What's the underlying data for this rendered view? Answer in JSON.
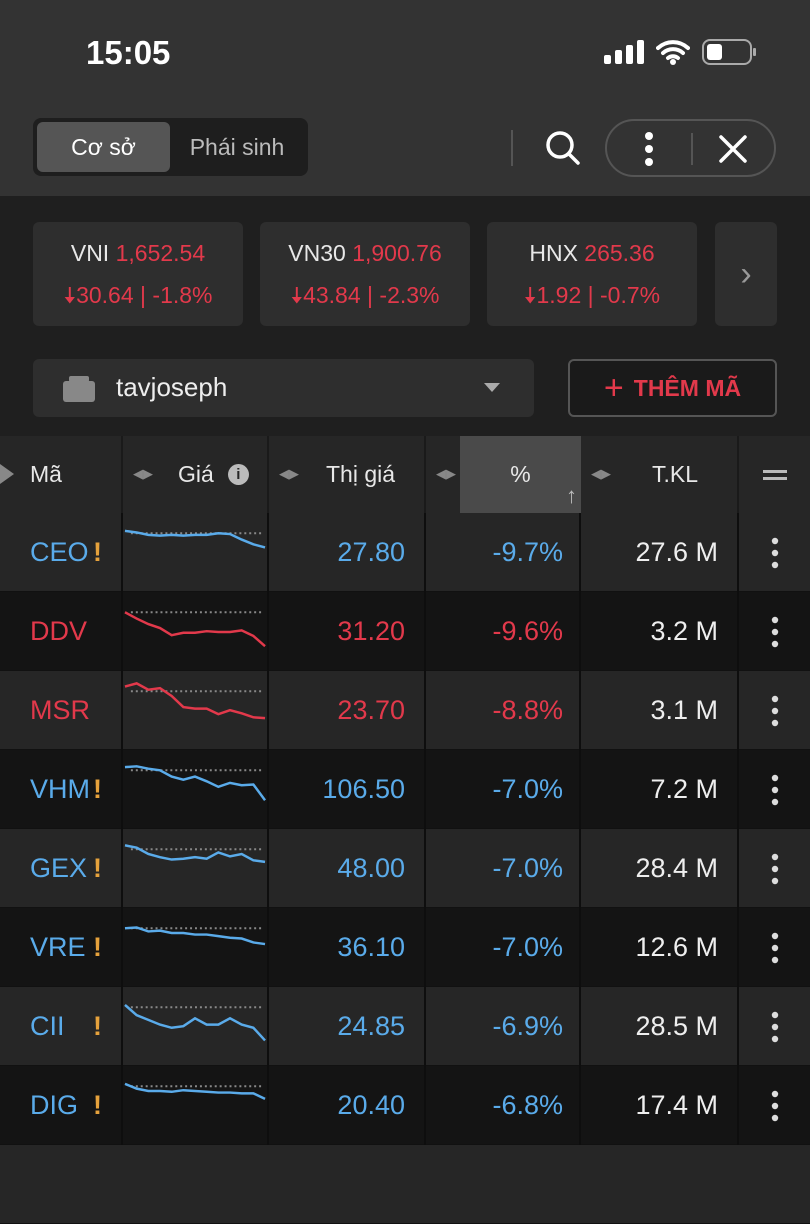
{
  "status_bar": {
    "time": "15:05"
  },
  "toolbar": {
    "tabs": [
      {
        "label": "Cơ sở",
        "active": true
      },
      {
        "label": "Phái sinh",
        "active": false
      }
    ]
  },
  "indices": [
    {
      "name": "VNI",
      "value": "1,652.54",
      "change": "30.64",
      "pct": "-1.8%",
      "direction": "down"
    },
    {
      "name": "VN30",
      "value": "1,900.76",
      "change": "43.84",
      "pct": "-2.3%",
      "direction": "down"
    },
    {
      "name": "HNX",
      "value": "265.36",
      "change": "1.92",
      "pct": "-0.7%",
      "direction": "down"
    }
  ],
  "watchlist": {
    "name": "tavjoseph",
    "add_label": "THÊM MÃ"
  },
  "table": {
    "columns": [
      "Mã",
      "Giá",
      "Thị giá",
      "%",
      "T.KL"
    ],
    "sort": {
      "column": "%",
      "direction": "ascending"
    },
    "rows": [
      {
        "symbol": "CEO",
        "warning": true,
        "color": "blue",
        "price": "27.80",
        "pct": "-9.7%",
        "volume": "27.6 M",
        "spark": [
          0.3,
          0.1,
          -0.2,
          -0.3,
          -0.2,
          -0.3,
          -0.2,
          -0.2,
          0,
          -0.1,
          -0.8,
          -1.4,
          -1.8
        ]
      },
      {
        "symbol": "DDV",
        "warning": false,
        "color": "red",
        "price": "31.20",
        "pct": "-9.6%",
        "volume": "3.2 M",
        "spark": [
          0,
          -0.8,
          -1.5,
          -2,
          -2.9,
          -2.6,
          -2.6,
          -2.4,
          -2.5,
          -2.5,
          -2.3,
          -3,
          -4.3
        ]
      },
      {
        "symbol": "MSR",
        "warning": false,
        "color": "red",
        "price": "23.70",
        "pct": "-8.8%",
        "volume": "3.1 M",
        "spark": [
          0.6,
          1,
          0.2,
          0.4,
          -0.6,
          -2,
          -2.2,
          -2.2,
          -2.9,
          -2.4,
          -2.8,
          -3.3,
          -3.4
        ]
      },
      {
        "symbol": "VHM",
        "warning": true,
        "color": "blue",
        "price": "106.50",
        "pct": "-7.0%",
        "volume": "7.2 M",
        "spark": [
          0.4,
          0.5,
          0.2,
          0,
          -0.8,
          -1.2,
          -0.8,
          -1.4,
          -2.1,
          -1.6,
          -1.9,
          -1.8,
          -3.8
        ]
      },
      {
        "symbol": "GEX",
        "warning": true,
        "color": "blue",
        "price": "48.00",
        "pct": "-7.0%",
        "volume": "28.4 M",
        "spark": [
          0.5,
          0.2,
          -0.6,
          -1,
          -1.3,
          -1.2,
          -1,
          -1.2,
          -0.4,
          -0.9,
          -0.6,
          -1.4,
          -1.6
        ]
      },
      {
        "symbol": "VRE",
        "warning": true,
        "color": "blue",
        "price": "36.10",
        "pct": "-7.0%",
        "volume": "12.6 M",
        "spark": [
          0,
          0.1,
          -0.4,
          -0.3,
          -0.6,
          -0.6,
          -0.8,
          -0.8,
          -1,
          -1.2,
          -1.3,
          -1.8,
          -2
        ]
      },
      {
        "symbol": "CII",
        "warning": true,
        "color": "blue",
        "price": "24.85",
        "pct": "-6.9%",
        "volume": "28.5 M",
        "spark": [
          0.3,
          -1,
          -1.6,
          -2.2,
          -2.6,
          -2.4,
          -1.4,
          -2.2,
          -2.2,
          -1.4,
          -2.2,
          -2.6,
          -4.2
        ]
      },
      {
        "symbol": "DIG",
        "warning": true,
        "color": "blue",
        "price": "20.40",
        "pct": "-6.8%",
        "volume": "17.4 M",
        "spark": [
          0.3,
          -0.3,
          -0.6,
          -0.6,
          -0.7,
          -0.5,
          -0.6,
          -0.7,
          -0.8,
          -0.8,
          -0.9,
          -0.9,
          -1.6
        ]
      }
    ]
  },
  "colors": {
    "up_blue": "#5aabea",
    "down_red": "#e2394b",
    "warning": "#e6a23c"
  }
}
